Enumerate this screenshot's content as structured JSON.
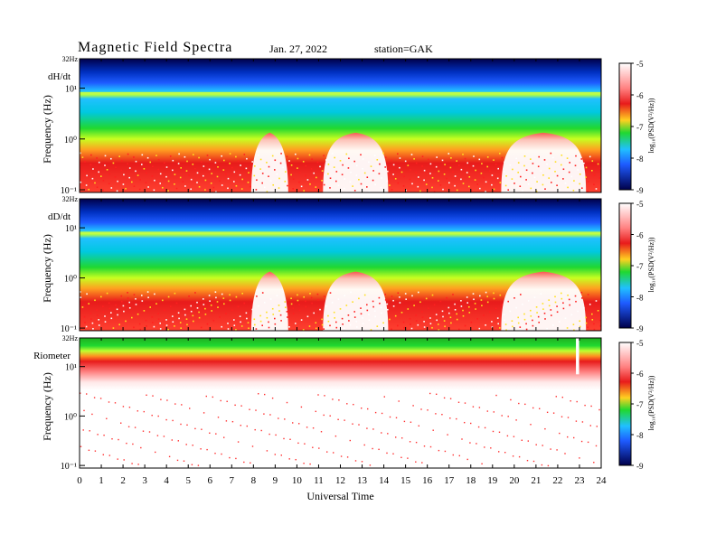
{
  "header": {
    "title": "Magnetic  Field  Spectra",
    "date": "Jan. 27, 2022",
    "station": "station=GAK"
  },
  "colors": {
    "quiet": "#ffffff",
    "low": "#e81b1b",
    "mid": "#20d830",
    "high": "#1e5bff",
    "veryhigh": "#00004a"
  },
  "chart_data": [
    {
      "type": "heatmap",
      "panel_label": "dH/dt",
      "ylabel": "Frequency  (Hz)",
      "xlabel": "",
      "top_label": "32Hz",
      "y_ticks": [
        "10¹",
        "10⁰",
        "10⁻¹"
      ],
      "x_range": [
        0,
        24
      ],
      "y_scale": "log",
      "y_range_hz": [
        0.1,
        32
      ],
      "colorbar": {
        "label": "log₁₀(PSD(V²/Hz))",
        "range": [
          -9,
          -5
        ],
        "ticks": [
          "-5",
          "-6",
          "-7",
          "-8",
          "-9"
        ]
      },
      "quiet_intervals_ut": [
        [
          7.9,
          9.6
        ],
        [
          11.2,
          14.2
        ],
        [
          19.4,
          23.3
        ]
      ],
      "noise_band_hz": 7.8
    },
    {
      "type": "heatmap",
      "panel_label": "dD/dt",
      "ylabel": "Frequency  (Hz)",
      "xlabel": "",
      "top_label": "32Hz",
      "y_ticks": [
        "10¹",
        "10⁰",
        "10⁻¹"
      ],
      "x_range": [
        0,
        24
      ],
      "y_scale": "log",
      "y_range_hz": [
        0.1,
        32
      ],
      "colorbar": {
        "label": "log₁₀(PSD(V²/Hz))",
        "range": [
          -9,
          -5
        ],
        "ticks": [
          "-5",
          "-6",
          "-7",
          "-8",
          "-9"
        ]
      },
      "quiet_intervals_ut": [
        [
          7.9,
          9.6
        ],
        [
          11.2,
          14.2
        ],
        [
          19.4,
          23.3
        ]
      ],
      "noise_band_hz": 7.8
    },
    {
      "type": "heatmap",
      "panel_label": "Riometer",
      "ylabel": "Frequency  (Hz)",
      "xlabel": "Universal  Time",
      "top_label": "32Hz",
      "y_ticks": [
        "10¹",
        "10⁰",
        "10⁻¹"
      ],
      "x_range": [
        0,
        24
      ],
      "x_ticks": [
        "0",
        "1",
        "2",
        "3",
        "4",
        "5",
        "6",
        "7",
        "8",
        "9",
        "10",
        "11",
        "12",
        "13",
        "14",
        "15",
        "16",
        "17",
        "18",
        "19",
        "20",
        "21",
        "22",
        "23",
        "24"
      ],
      "y_scale": "log",
      "y_range_hz": [
        0.1,
        32
      ],
      "colorbar": {
        "label": "log₁₀(PSD(V²/Hz))",
        "range": [
          -9,
          -5
        ],
        "ticks": [
          "-5",
          "-6",
          "-7",
          "-8",
          "-9"
        ]
      },
      "data_gap_ut": 22.9
    }
  ]
}
